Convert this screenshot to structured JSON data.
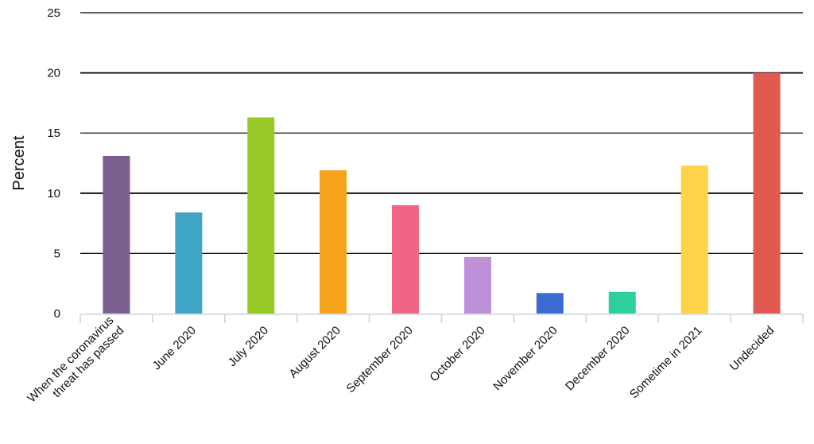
{
  "chart_data": {
    "type": "bar",
    "title": "",
    "xlabel": "",
    "ylabel": "Percent",
    "ylim": [
      0,
      25
    ],
    "yticks": [
      0,
      5,
      10,
      15,
      20,
      25
    ],
    "grid": true,
    "legend": "none",
    "categories": [
      [
        "When the coronavirus",
        "threat has passed"
      ],
      [
        "June 2020"
      ],
      [
        "July 2020"
      ],
      [
        "August 2020"
      ],
      [
        "September 2020"
      ],
      [
        "October 2020"
      ],
      [
        "November 2020"
      ],
      [
        "December 2020"
      ],
      [
        "Sometime in 2021"
      ],
      [
        "Undecided"
      ]
    ],
    "values": [
      13.1,
      8.4,
      16.3,
      11.9,
      9.0,
      4.7,
      1.7,
      1.8,
      12.3,
      20.0
    ],
    "colors": [
      "#7b5f8f",
      "#40a4c5",
      "#97c928",
      "#f4a31a",
      "#f06585",
      "#c091db",
      "#3b6bd0",
      "#2ecf9f",
      "#fed34a",
      "#e05a52"
    ]
  }
}
